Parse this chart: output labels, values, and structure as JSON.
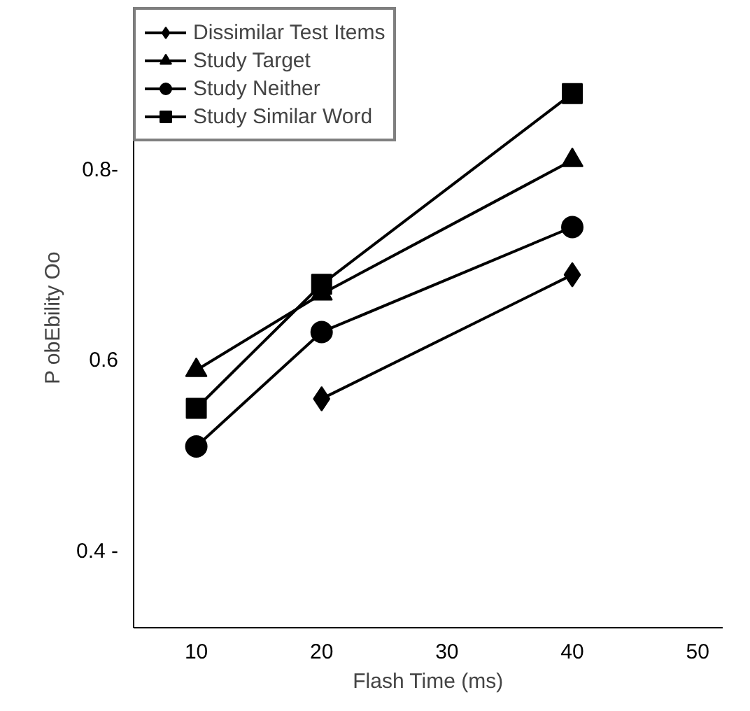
{
  "chart_data": {
    "type": "line",
    "xlabel": "Flash Time (ms)",
    "ylabel": "P obEbility Oo",
    "x": [
      10,
      20,
      40
    ],
    "series": [
      {
        "name": "Dissimilar Test Items",
        "color": "#000000",
        "marker": "diamond",
        "values": [
          null,
          0.56,
          0.69
        ]
      },
      {
        "name": "Study Target",
        "color": "#000000",
        "marker": "triangle",
        "values": [
          0.59,
          0.67,
          0.81
        ]
      },
      {
        "name": "Study Neither",
        "color": "#000000",
        "marker": "circle",
        "values": [
          0.51,
          0.63,
          0.74
        ]
      },
      {
        "name": "Study Similar Word",
        "color": "#000000",
        "marker": "square",
        "values": [
          0.55,
          0.68,
          0.88
        ]
      }
    ],
    "xlim": [
      5,
      52
    ],
    "ylim": [
      0.32,
      0.97
    ],
    "xticks": [
      10,
      20,
      30,
      40,
      50
    ],
    "yticks": [
      {
        "value": 0.4,
        "label": "0.4 -"
      },
      {
        "value": 0.6,
        "label": "0.6"
      },
      {
        "value": 0.8,
        "label": "0.8-"
      }
    ],
    "grid": false,
    "legend": "top left",
    "line_style": "solid"
  }
}
